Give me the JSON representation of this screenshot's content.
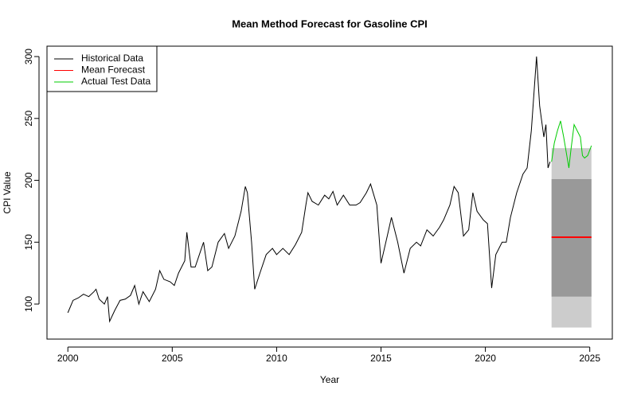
{
  "chart_data": {
    "type": "line",
    "title": "Mean Method Forecast for Gasoline CPI",
    "x_label": "Year",
    "y_label": "CPI Value",
    "xlim": [
      1999.0,
      2026.08
    ],
    "ylim": [
      71.7,
      308.4
    ],
    "xticks": [
      2000,
      2005,
      2010,
      2015,
      2020,
      2025
    ],
    "yticks": [
      100,
      150,
      200,
      250,
      300
    ],
    "grid": false,
    "legend": "top-left",
    "bands": [
      {
        "color": "#cccccc",
        "x": [
          2023.17,
          2025.08
        ],
        "lower": [
          81,
          81
        ],
        "upper": [
          226,
          226
        ]
      },
      {
        "color": "#999999",
        "x": [
          2023.17,
          2025.08
        ],
        "lower": [
          106,
          106
        ],
        "upper": [
          201,
          201
        ]
      }
    ],
    "series": [
      {
        "name": "Historical Data",
        "color": "#000000",
        "width": 1,
        "x": [
          2000.0,
          2000.25,
          2000.5,
          2000.75,
          2001.0,
          2001.25,
          2001.35,
          2001.5,
          2001.75,
          2001.9,
          2002.0,
          2002.25,
          2002.5,
          2002.75,
          2003.0,
          2003.2,
          2003.4,
          2003.6,
          2003.9,
          2004.2,
          2004.4,
          2004.6,
          2004.9,
          2005.1,
          2005.3,
          2005.6,
          2005.7,
          2005.9,
          2006.1,
          2006.3,
          2006.5,
          2006.7,
          2006.9,
          2007.2,
          2007.5,
          2007.7,
          2008.0,
          2008.3,
          2008.5,
          2008.6,
          2008.8,
          2008.95,
          2009.2,
          2009.5,
          2009.8,
          2010.0,
          2010.3,
          2010.6,
          2010.9,
          2011.2,
          2011.4,
          2011.5,
          2011.7,
          2012.0,
          2012.3,
          2012.5,
          2012.7,
          2012.9,
          2013.2,
          2013.5,
          2013.8,
          2014.0,
          2014.3,
          2014.5,
          2014.8,
          2015.0,
          2015.3,
          2015.5,
          2015.8,
          2016.1,
          2016.4,
          2016.7,
          2016.9,
          2017.2,
          2017.5,
          2017.8,
          2018.0,
          2018.3,
          2018.5,
          2018.7,
          2018.95,
          2019.2,
          2019.4,
          2019.6,
          2019.9,
          2020.1,
          2020.3,
          2020.5,
          2020.8,
          2021.0,
          2021.2,
          2021.5,
          2021.8,
          2022.0,
          2022.2,
          2022.45,
          2022.6,
          2022.8,
          2022.9,
          2023.0,
          2023.1
        ],
        "values": [
          93,
          103,
          105,
          108,
          106,
          110,
          112,
          104,
          100,
          106,
          86,
          95,
          103,
          104,
          107,
          115,
          100,
          110,
          102,
          112,
          127,
          120,
          118,
          115,
          125,
          135,
          158,
          130,
          130,
          140,
          150,
          127,
          130,
          150,
          157,
          145,
          155,
          175,
          195,
          190,
          150,
          112,
          125,
          140,
          145,
          140,
          145,
          140,
          148,
          158,
          180,
          190,
          183,
          180,
          188,
          185,
          191,
          180,
          188,
          180,
          180,
          182,
          190,
          197,
          180,
          133,
          155,
          170,
          150,
          125,
          145,
          150,
          147,
          160,
          155,
          162,
          168,
          180,
          195,
          190,
          155,
          160,
          190,
          175,
          168,
          165,
          113,
          140,
          150,
          150,
          170,
          190,
          205,
          210,
          240,
          300,
          260,
          235,
          245,
          210,
          215
        ]
      },
      {
        "name": "Mean Forecast",
        "color": "#ff0000",
        "width": 2,
        "x": [
          2023.17,
          2025.08
        ],
        "values": [
          154,
          154
        ]
      },
      {
        "name": "Actual Test Data",
        "color": "#00cc00",
        "width": 1,
        "x": [
          2023.17,
          2023.3,
          2023.45,
          2023.6,
          2023.75,
          2023.9,
          2024.0,
          2024.1,
          2024.25,
          2024.4,
          2024.55,
          2024.65,
          2024.75,
          2024.9,
          2025.08
        ],
        "values": [
          215,
          230,
          240,
          248,
          235,
          220,
          210,
          225,
          245,
          240,
          235,
          220,
          218,
          220,
          228
        ]
      }
    ]
  }
}
